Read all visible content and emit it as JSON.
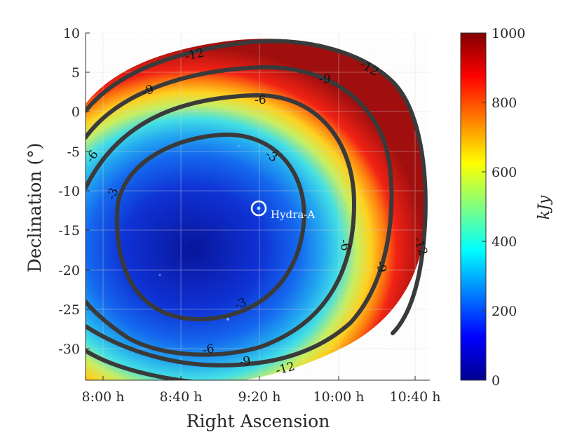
{
  "chart_data": {
    "type": "heatmap",
    "title": "",
    "xlabel": "Right Ascension",
    "ylabel": "Declination (°)",
    "x_ticks": [
      "8:00 h",
      "8:40 h",
      "9:20 h",
      "10:00 h",
      "10:40 h"
    ],
    "y_ticks": [
      "10",
      "5",
      "0",
      "-5",
      "-10",
      "-15",
      "-20",
      "-25",
      "-30"
    ],
    "xlim_hours": [
      7.8,
      10.77
    ],
    "ylim": [
      -33.5,
      10
    ],
    "grid": true,
    "colormap": "jet",
    "colorbar": {
      "label": "kJy",
      "range": [
        0,
        1000
      ],
      "ticks": [
        "0",
        "200",
        "400",
        "600",
        "800",
        "1000"
      ]
    },
    "background_color": "#ffffff",
    "contours": [
      {
        "level": "-3",
        "labels": 3
      },
      {
        "level": "-6",
        "labels": 4
      },
      {
        "level": "-9",
        "labels": 4
      },
      {
        "level": "-12",
        "labels": 4
      }
    ],
    "annotations": [
      {
        "text": "Hydra-A",
        "ra_hours": 9.3,
        "dec": -12.1,
        "marker": "circle",
        "color": "#ffffff"
      }
    ]
  }
}
